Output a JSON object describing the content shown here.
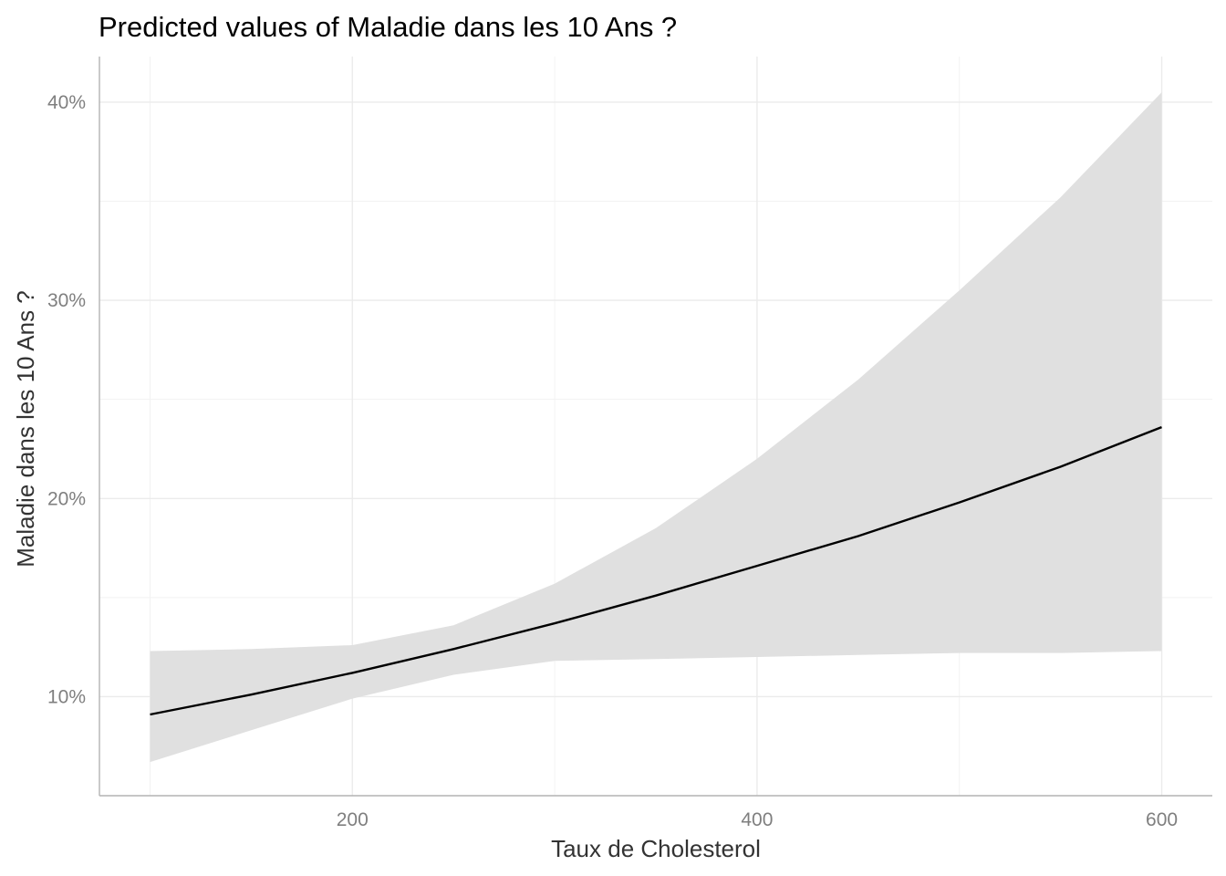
{
  "chart_data": {
    "type": "line",
    "title": "Predicted values of Maladie dans les 10 Ans ?",
    "xlabel": "Taux de Cholesterol",
    "ylabel": "Maladie dans les 10 Ans ?",
    "xlim": [
      75,
      625
    ],
    "ylim": [
      0.05,
      0.423
    ],
    "x_ticks": [
      200,
      400,
      600
    ],
    "x_tick_labels": [
      "200",
      "400",
      "600"
    ],
    "y_ticks": [
      0.1,
      0.2,
      0.3,
      0.4
    ],
    "y_tick_labels": [
      "10%",
      "20%",
      "30%",
      "40%"
    ],
    "x_minor": [
      100,
      300,
      500
    ],
    "y_minor": [
      0.15,
      0.25,
      0.35
    ],
    "grid": true,
    "series": [
      {
        "x": [
          100,
          150,
          200,
          250,
          300,
          350,
          400,
          450,
          500,
          550,
          600
        ],
        "predicted": [
          0.091,
          0.101,
          0.112,
          0.124,
          0.137,
          0.151,
          0.166,
          0.181,
          0.198,
          0.216,
          0.236
        ],
        "ci_low": [
          0.067,
          0.083,
          0.099,
          0.111,
          0.118,
          0.119,
          0.12,
          0.121,
          0.122,
          0.122,
          0.123
        ],
        "ci_high": [
          0.123,
          0.124,
          0.126,
          0.136,
          0.157,
          0.185,
          0.22,
          0.26,
          0.305,
          0.352,
          0.405
        ]
      }
    ],
    "colors": {
      "line": "#000000",
      "band": "#e0e0e0",
      "grid": "#ebebeb",
      "axis": "#b3b3b3",
      "tick_text": "#7f7f7f"
    }
  }
}
